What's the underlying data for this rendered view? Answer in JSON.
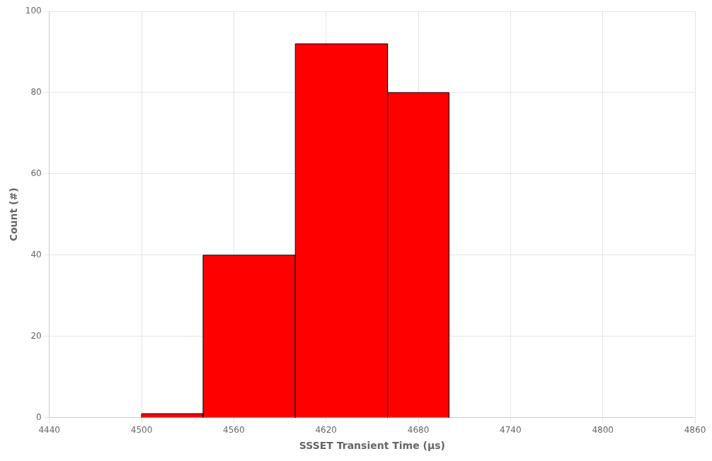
{
  "chart_data": {
    "type": "histogram",
    "bins": [
      4500,
      4540,
      4600,
      4660,
      4700
    ],
    "values": [
      1,
      40,
      92,
      80
    ],
    "color": "#ff0000",
    "xlabel": "SSSET Transient Time (μs)",
    "ylabel": "Count (#)",
    "xlim": [
      4440,
      4860
    ],
    "ylim": [
      0,
      100
    ],
    "xticks": [
      4440,
      4500,
      4560,
      4620,
      4680,
      4740,
      4800,
      4860
    ],
    "yticks": [
      0,
      20,
      40,
      60,
      80,
      100
    ],
    "grid": true
  }
}
